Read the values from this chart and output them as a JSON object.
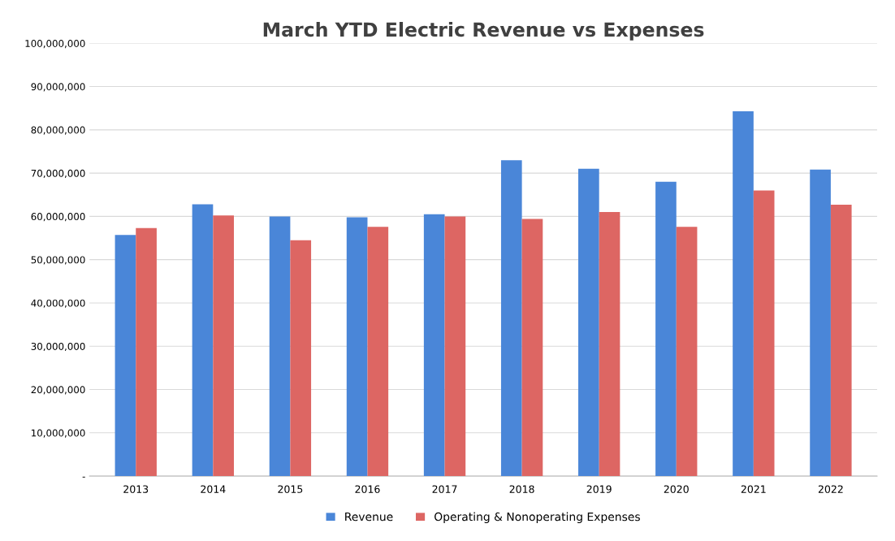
{
  "chart_data": {
    "type": "bar",
    "title": "March YTD Electric Revenue vs Expenses",
    "categories": [
      "2013",
      "2014",
      "2015",
      "2016",
      "2017",
      "2018",
      "2019",
      "2020",
      "2021",
      "2022"
    ],
    "series": [
      {
        "name": "Revenue",
        "color": "#4a86d8",
        "values": [
          55700000,
          62800000,
          60000000,
          59800000,
          60500000,
          73000000,
          71000000,
          68000000,
          84300000,
          70800000
        ]
      },
      {
        "name": "Operating & Nonoperating Expenses",
        "color": "#dd6663",
        "values": [
          57300000,
          60200000,
          54500000,
          57600000,
          60000000,
          59400000,
          61000000,
          57600000,
          66000000,
          62700000
        ]
      }
    ],
    "ylim": [
      0,
      100000000
    ],
    "yticks": [
      {
        "value": 0,
        "label": "-"
      },
      {
        "value": 10000000,
        "label": "10,000,000"
      },
      {
        "value": 20000000,
        "label": "20,000,000"
      },
      {
        "value": 30000000,
        "label": "30,000,000"
      },
      {
        "value": 40000000,
        "label": "40,000,000"
      },
      {
        "value": 50000000,
        "label": "50,000,000"
      },
      {
        "value": 60000000,
        "label": "60,000,000"
      },
      {
        "value": 70000000,
        "label": "70,000,000"
      },
      {
        "value": 80000000,
        "label": "80,000,000"
      },
      {
        "value": 90000000,
        "label": "90,000,000"
      },
      {
        "value": 100000000,
        "label": "100,000,000"
      }
    ],
    "grid": "y",
    "legend": "bottom"
  }
}
